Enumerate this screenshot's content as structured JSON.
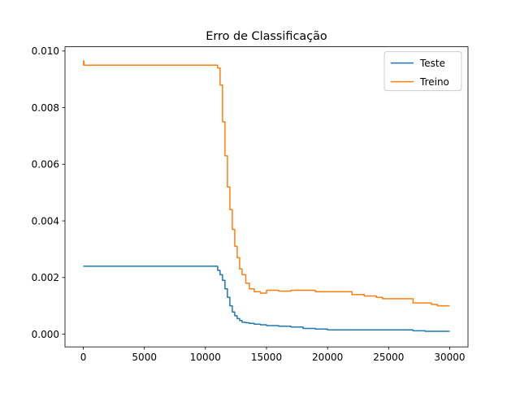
{
  "chart_data": {
    "type": "line",
    "title": "Erro de Classificação",
    "xlabel": "",
    "ylabel": "",
    "xlim": [
      -1500,
      31500
    ],
    "ylim": [
      -0.00045,
      0.01015
    ],
    "xticks": [
      0,
      5000,
      10000,
      15000,
      20000,
      25000,
      30000
    ],
    "xtick_labels": [
      "0",
      "5000",
      "10000",
      "15000",
      "20000",
      "25000",
      "30000"
    ],
    "yticks": [
      0.0,
      0.002,
      0.004,
      0.006,
      0.008,
      0.01
    ],
    "ytick_labels": [
      "0.000",
      "0.002",
      "0.004",
      "0.006",
      "0.008",
      "0.010"
    ],
    "grid": false,
    "legend": "top-right",
    "series": [
      {
        "name": "Teste",
        "color": "#1f77b4",
        "x": [
          0,
          1000,
          5000,
          10000,
          10800,
          11000,
          11200,
          11400,
          11600,
          11800,
          12000,
          12200,
          12400,
          12600,
          12800,
          13000,
          13300,
          13600,
          14000,
          14500,
          15000,
          16000,
          17000,
          18000,
          19000,
          20000,
          22000,
          24000,
          26000,
          27000,
          28000,
          29000,
          30000
        ],
        "y": [
          0.0024,
          0.0024,
          0.0024,
          0.0024,
          0.0024,
          0.00225,
          0.0021,
          0.0019,
          0.0016,
          0.0013,
          0.001,
          0.00078,
          0.00065,
          0.00055,
          0.00048,
          0.00042,
          0.0004,
          0.00038,
          0.00035,
          0.00033,
          0.0003,
          0.00028,
          0.00025,
          0.0002,
          0.00018,
          0.00015,
          0.00015,
          0.00015,
          0.00015,
          0.00012,
          0.0001,
          0.0001,
          0.0001
        ]
      },
      {
        "name": "Treino",
        "color": "#ff7f0e",
        "x": [
          0,
          20,
          50,
          100,
          1000,
          5000,
          10000,
          10800,
          11000,
          11200,
          11400,
          11600,
          11800,
          12000,
          12200,
          12400,
          12600,
          12800,
          13000,
          13300,
          13600,
          14000,
          14500,
          15000,
          15500,
          16000,
          17000,
          18000,
          19000,
          20000,
          21000,
          22000,
          23000,
          24000,
          24500,
          25000,
          26000,
          27000,
          28000,
          28500,
          29000,
          30000
        ],
        "y": [
          0.0095,
          0.00965,
          0.0095,
          0.0095,
          0.0095,
          0.0095,
          0.0095,
          0.0095,
          0.0094,
          0.0088,
          0.0075,
          0.0063,
          0.0052,
          0.0044,
          0.0037,
          0.0031,
          0.0027,
          0.0023,
          0.0021,
          0.0018,
          0.0016,
          0.0015,
          0.00145,
          0.00155,
          0.00155,
          0.00152,
          0.00155,
          0.00155,
          0.0015,
          0.0015,
          0.0015,
          0.0014,
          0.00135,
          0.0013,
          0.00125,
          0.00125,
          0.00125,
          0.0011,
          0.0011,
          0.00105,
          0.001,
          0.001
        ]
      }
    ]
  }
}
